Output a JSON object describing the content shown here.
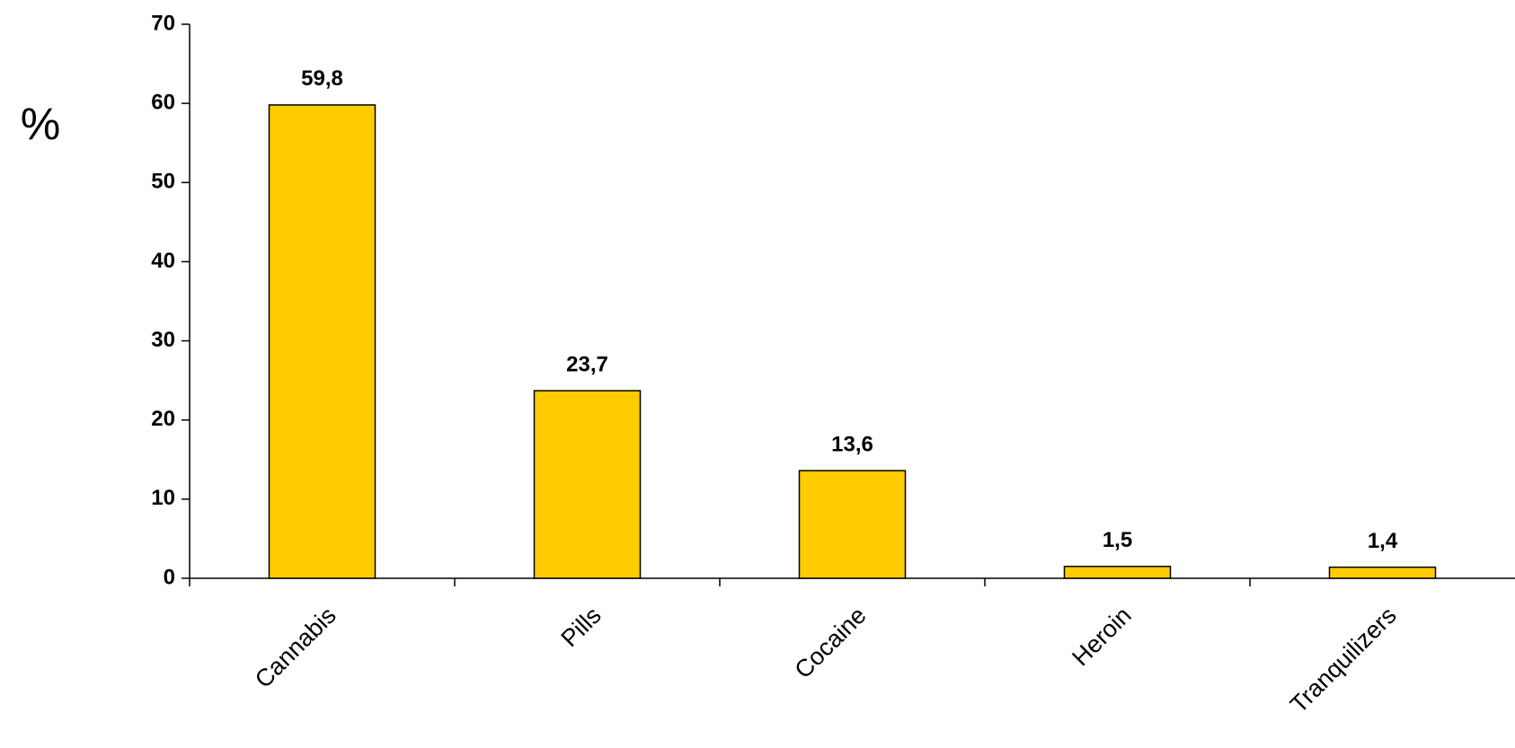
{
  "chart_data": {
    "type": "bar",
    "y_label": "%",
    "categories": [
      "Cannabis",
      "Pills",
      "Cocaine",
      "Heroin",
      "Tranquilizers"
    ],
    "values": [
      59.8,
      23.7,
      13.6,
      1.5,
      1.4
    ],
    "value_labels": [
      "59,8",
      "23,7",
      "13,6",
      "1,5",
      "1,4"
    ],
    "color": "#ffcc00",
    "ylim": [
      0,
      70
    ],
    "yticks": [
      0,
      10,
      20,
      30,
      40,
      50,
      60,
      70
    ],
    "grid": false
  }
}
